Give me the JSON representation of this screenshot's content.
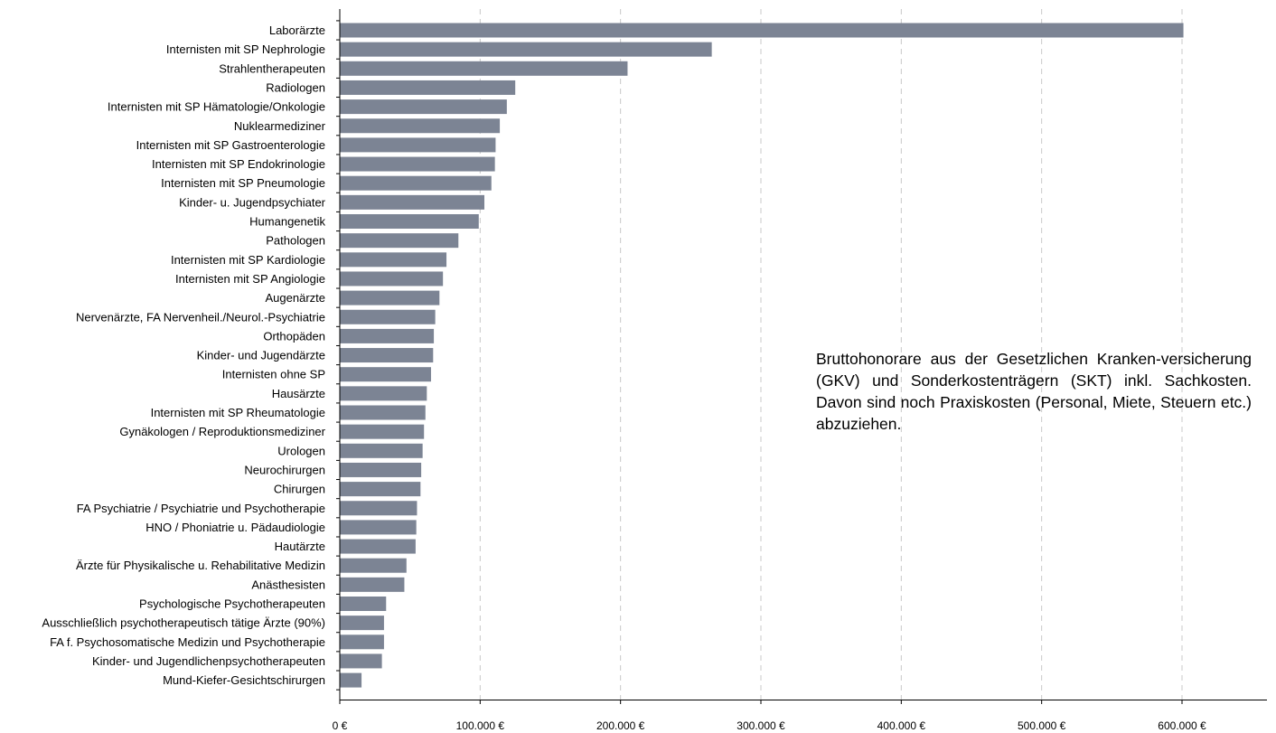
{
  "chart_data": {
    "type": "bar",
    "orientation": "horizontal",
    "title": "",
    "xlabel": "",
    "ylabel": "",
    "xlim": [
      0,
      650000
    ],
    "xticks": [
      0,
      100000,
      200000,
      300000,
      400000,
      500000,
      600000
    ],
    "xtick_labels": [
      "0 €",
      "100.000 €",
      "200.000 €",
      "300.000 €",
      "400.000 €",
      "500.000 €",
      "600.000 €"
    ],
    "grid": "vertical dashed",
    "bar_color": "#7c8494",
    "categories": [
      "Laborärzte",
      "Internisten mit SP Nephrologie",
      "Strahlentherapeuten",
      "Radiologen",
      "Internisten mit SP Hämatologie/Onkologie",
      "Nuklearmediziner",
      "Internisten mit SP Gastroenterologie",
      "Internisten mit SP Endokrinologie",
      "Internisten mit SP Pneumologie",
      "Kinder- u. Jugendpsychiater",
      "Humangenetik",
      "Pathologen",
      "Internisten mit SP Kardiologie",
      "Internisten mit SP Angiologie",
      "Augenärzte",
      "Nervenärzte, FA Nervenheil./Neurol.-Psychiatrie",
      "Orthopäden",
      "Kinder- und Jugendärzte",
      "Internisten ohne SP",
      "Hausärzte",
      "Internisten mit SP Rheumatologie",
      "Gynäkologen / Reproduktionsmediziner",
      "Urologen",
      "Neurochirurgen",
      "Chirurgen",
      "FA Psychiatrie / Psychiatrie und Psychotherapie",
      "HNO / Phoniatrie u. Pädaudiologie",
      "Hautärzte",
      "Ärzte für Physikalische u. Rehabilitative Medizin",
      "Anästhesisten",
      "Psychologische Psychotherapeuten",
      "Ausschließlich psychotherapeutisch tätige Ärzte (90%)",
      "FA f. Psychosomatische Medizin und Psychotherapie",
      "Kinder- und Jugendlichenpsychotherapeuten",
      "Mund-Kiefer-Gesichtschirurgen"
    ],
    "values": [
      601000,
      265000,
      205000,
      125000,
      119000,
      114000,
      111000,
      110500,
      108000,
      103000,
      99000,
      84500,
      76000,
      73500,
      71000,
      68000,
      67000,
      66500,
      65000,
      62000,
      61000,
      60000,
      59000,
      58000,
      57500,
      55000,
      54500,
      54000,
      47500,
      46000,
      33000,
      31500,
      31500,
      30000,
      15500
    ],
    "annotation": "Bruttohonorare aus der Gesetzlichen Kranken-versicherung (GKV) und Sonderkostenträgern (SKT) inkl. Sachkosten. Davon sind noch Praxiskosten (Personal, Miete, Steuern etc.) abzuziehen."
  }
}
